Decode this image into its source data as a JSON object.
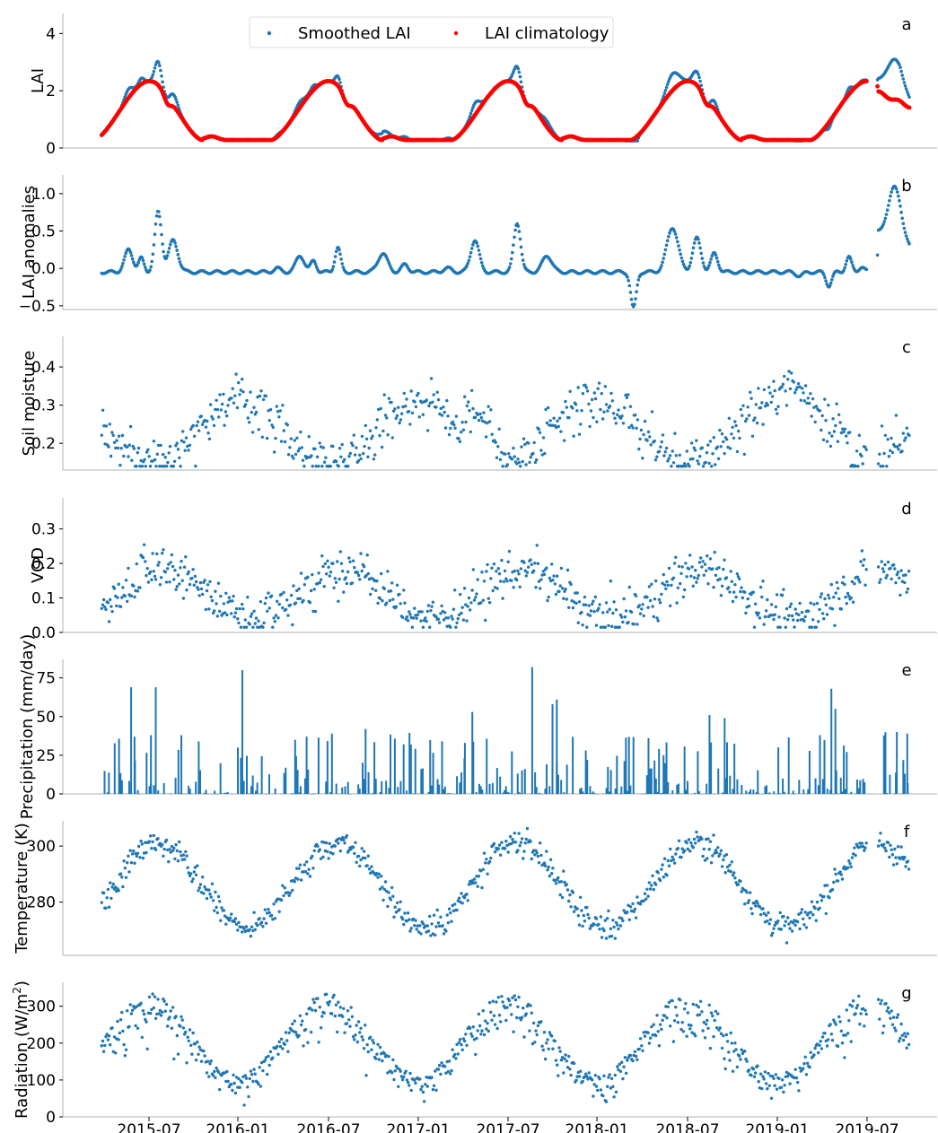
{
  "x_axis": {
    "ticks": [
      "2015-07",
      "2016-01",
      "2016-07",
      "2017-01",
      "2017-07",
      "2018-01",
      "2018-07",
      "2019-01",
      "2019-07"
    ]
  },
  "legend": {
    "entries": [
      {
        "label": "Smoothed LAI",
        "color": "#1f77b4"
      },
      {
        "label": "LAI climatology",
        "color": "#ff0000"
      }
    ]
  },
  "chart_data": [
    {
      "type": "scatter",
      "letter": "a",
      "ylabel": "LAI",
      "ylim": [
        0,
        4.7
      ],
      "yticks": [
        "0",
        "2",
        "4"
      ],
      "series": [
        {
          "name": "Smoothed LAI",
          "color": "#1f77b4",
          "pattern": "lai_smooth"
        },
        {
          "name": "LAI climatology",
          "color": "#ff0000",
          "pattern": "lai_clim"
        }
      ]
    },
    {
      "type": "scatter",
      "letter": "b",
      "ylabel": "LAI anomalies",
      "ylim": [
        -0.55,
        1.25
      ],
      "yticks": [
        "−0.5",
        "0.0",
        "0.5",
        "1.0"
      ],
      "series": [
        {
          "color": "#1f77b4",
          "pattern": "lai_anom"
        }
      ]
    },
    {
      "type": "scatter",
      "letter": "c",
      "ylabel": "Soil moisture",
      "ylim": [
        0.13,
        0.48
      ],
      "yticks": [
        "0.2",
        "0.3",
        "0.4"
      ],
      "series": [
        {
          "color": "#1f77b4",
          "pattern": "soil"
        }
      ]
    },
    {
      "type": "scatter",
      "letter": "d",
      "ylabel": "VOD",
      "ylim": [
        0.0,
        0.39
      ],
      "yticks": [
        "0.0",
        "0.1",
        "0.2",
        "0.3"
      ],
      "series": [
        {
          "color": "#1f77b4",
          "pattern": "vod"
        }
      ]
    },
    {
      "type": "bar",
      "letter": "e",
      "ylabel": "Precipitation (mm/day)",
      "ylim": [
        0,
        87
      ],
      "yticks": [
        "0",
        "25",
        "50",
        "75"
      ],
      "series": [
        {
          "color": "#1f77b4",
          "pattern": "precip"
        }
      ]
    },
    {
      "type": "scatter",
      "letter": "f",
      "ylabel": "Temperature (K)",
      "ylim": [
        261,
        309
      ],
      "yticks": [
        "280",
        "300"
      ],
      "series": [
        {
          "color": "#1f77b4",
          "pattern": "temp"
        }
      ]
    },
    {
      "type": "scatter",
      "letter": "g",
      "ylabel_main": "Radiation (W/m",
      "ylabel_sup": "2",
      "ylabel_end": ")",
      "ylim": [
        0,
        365
      ],
      "yticks": [
        "0",
        "100",
        "200",
        "300"
      ],
      "series": [
        {
          "color": "#1f77b4",
          "pattern": "rad"
        }
      ]
    }
  ]
}
